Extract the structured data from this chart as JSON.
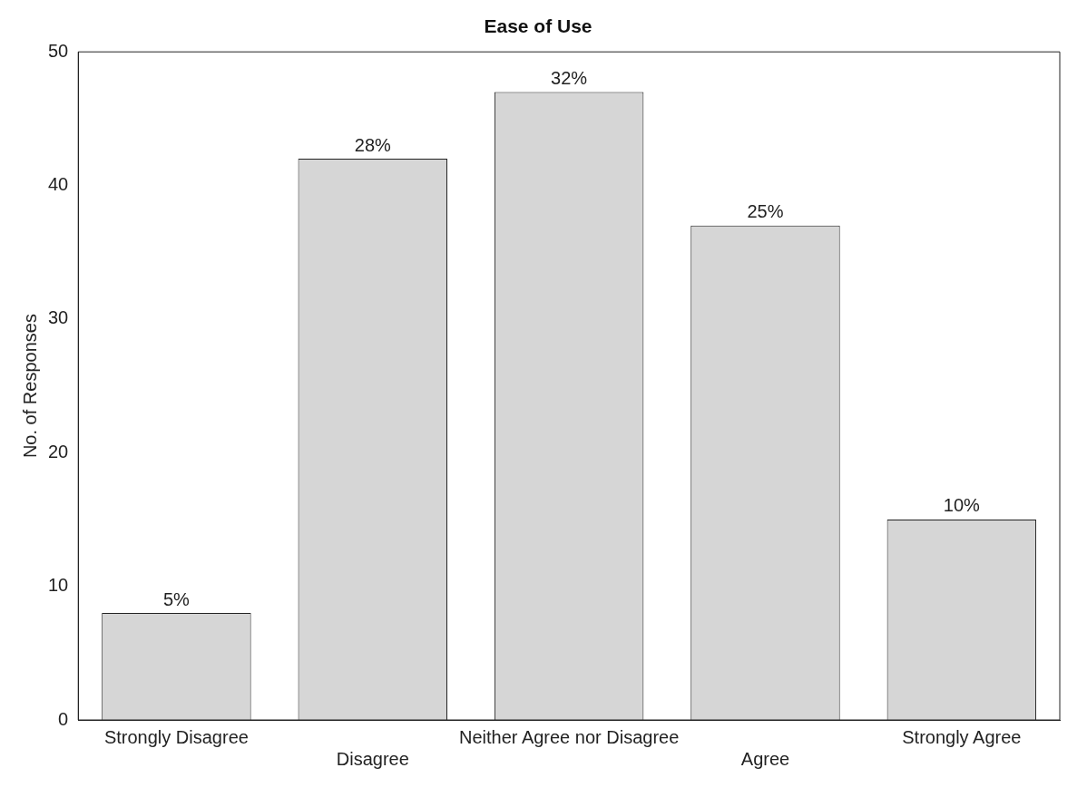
{
  "chart_data": {
    "type": "bar",
    "title": "Ease of Use",
    "ylabel": "No. of Responses",
    "categories": [
      "Strongly Disagree",
      "Disagree",
      "Neither Agree nor Disagree",
      "Agree",
      "Strongly Agree"
    ],
    "values": [
      8,
      42,
      47,
      37,
      15
    ],
    "annotations": [
      {
        "text": "5%",
        "x": "Strongly Disagree",
        "y": 8
      },
      {
        "text": "28%",
        "x": "Disagree",
        "y": 42
      },
      {
        "text": "32%",
        "x": "Neither Agree nor Disagree",
        "y": 47
      },
      {
        "text": "25%",
        "x": "Agree",
        "y": 37
      },
      {
        "text": "10%",
        "x": "Strongly Agree",
        "y": 15
      }
    ],
    "color": "#d6d6d6",
    "ylim": [
      0,
      50
    ],
    "yticks": [
      0,
      10,
      20,
      30,
      40,
      50
    ],
    "grid": false,
    "legend": false
  }
}
